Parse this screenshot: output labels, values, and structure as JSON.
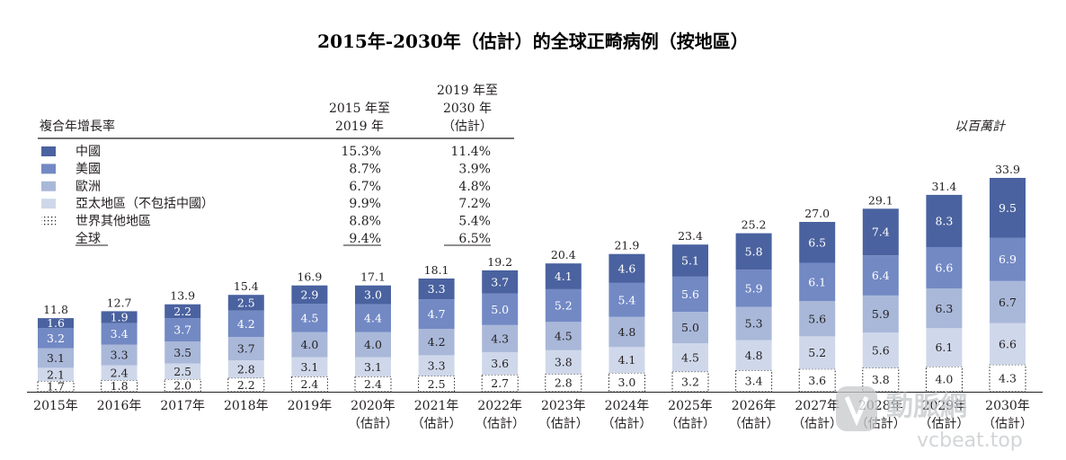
{
  "chart_data": {
    "type": "bar",
    "stacked": true,
    "title": "2015年-2030年（估計）的全球正畸病例（按地區）",
    "unit_note": "以百萬計",
    "categories": [
      {
        "year": "2015年",
        "note": ""
      },
      {
        "year": "2016年",
        "note": ""
      },
      {
        "year": "2017年",
        "note": ""
      },
      {
        "year": "2018年",
        "note": ""
      },
      {
        "year": "2019年",
        "note": ""
      },
      {
        "year": "2020年",
        "note": "（估計）"
      },
      {
        "year": "2021年",
        "note": "（估計）"
      },
      {
        "year": "2022年",
        "note": "（估計）"
      },
      {
        "year": "2023年",
        "note": "（估計）"
      },
      {
        "year": "2024年",
        "note": "（估計）"
      },
      {
        "year": "2025年",
        "note": "（估計）"
      },
      {
        "year": "2026年",
        "note": "（估計）"
      },
      {
        "year": "2027年",
        "note": "（估計）"
      },
      {
        "year": "2028年",
        "note": "（估計）"
      },
      {
        "year": "2029年",
        "note": "（估計）"
      },
      {
        "year": "2030年",
        "note": "（估計）"
      }
    ],
    "series": [
      {
        "name": "世界其他地區",
        "color": "#ffffff",
        "pattern": "dotted",
        "values": [
          1.7,
          1.8,
          2.0,
          2.2,
          2.4,
          2.4,
          2.5,
          2.7,
          2.8,
          3.0,
          3.2,
          3.4,
          3.6,
          3.8,
          4.0,
          4.3
        ]
      },
      {
        "name": "亞太地區（不包括中國）",
        "color": "#cfd8ea",
        "values": [
          2.1,
          2.4,
          2.5,
          2.8,
          3.1,
          3.1,
          3.3,
          3.6,
          3.8,
          4.1,
          4.5,
          4.8,
          5.2,
          5.6,
          6.1,
          6.6
        ]
      },
      {
        "name": "歐洲",
        "color": "#a9b8d9",
        "values": [
          3.1,
          3.3,
          3.5,
          3.7,
          4.0,
          4.0,
          4.2,
          4.3,
          4.5,
          4.8,
          5.0,
          5.3,
          5.6,
          5.9,
          6.3,
          6.7
        ]
      },
      {
        "name": "美國",
        "color": "#7289c4",
        "values": [
          3.2,
          3.4,
          3.7,
          4.2,
          4.5,
          4.4,
          4.7,
          5.0,
          5.2,
          5.4,
          5.6,
          5.9,
          6.1,
          6.4,
          6.6,
          6.9
        ]
      },
      {
        "name": "中國",
        "color": "#4a629f",
        "values": [
          1.6,
          1.9,
          2.2,
          2.5,
          2.9,
          3.0,
          3.3,
          3.7,
          4.1,
          4.6,
          5.1,
          5.8,
          6.5,
          7.4,
          8.3,
          9.5
        ]
      }
    ],
    "totals": [
      11.8,
      12.7,
      13.9,
      15.4,
      16.9,
      17.1,
      18.1,
      19.2,
      20.4,
      21.9,
      23.4,
      25.2,
      27.0,
      29.1,
      31.4,
      33.9
    ],
    "cagr_table": {
      "heading": "複合年增長率",
      "col1_lines": [
        "2015 年至",
        "2019 年"
      ],
      "col2_lines": [
        "2019 年至",
        "2030 年",
        "（估計）"
      ],
      "rows": [
        {
          "label": "中國",
          "c1": "15.3%",
          "c2": "11.4%",
          "color": "#4a629f"
        },
        {
          "label": "美國",
          "c1": "8.7%",
          "c2": "3.9%",
          "color": "#7289c4"
        },
        {
          "label": "歐洲",
          "c1": "6.7%",
          "c2": "4.8%",
          "color": "#a9b8d9"
        },
        {
          "label": "亞太地區（不包括中國）",
          "c1": "9.9%",
          "c2": "7.2%",
          "color": "#cfd8ea"
        },
        {
          "label": "世界其他地區",
          "c1": "8.8%",
          "c2": "5.4%",
          "color": "#ffffff"
        },
        {
          "label": "全球",
          "c1": "9.4%",
          "c2": "6.5%",
          "color": ""
        }
      ]
    }
  },
  "watermark": {
    "text1": "動脈網",
    "text2": "vcbeat.top"
  }
}
